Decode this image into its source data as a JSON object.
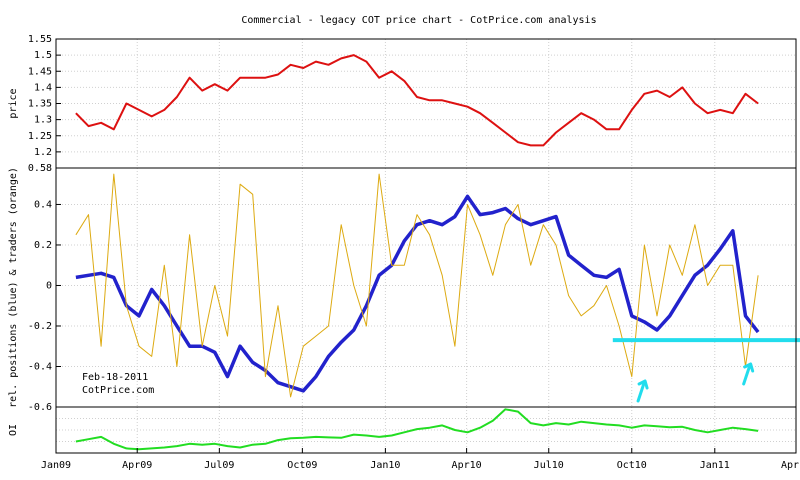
{
  "chart_data": {
    "type": "line",
    "title": "Commercial - legacy COT price chart - CotPrice.com analysis",
    "x_axis": {
      "tick_labels": [
        "Jan09",
        "Apr09",
        "Jul09",
        "Oct09",
        "Jan10",
        "Apr10",
        "Jul10",
        "Oct10",
        "Jan11",
        "Apr11"
      ],
      "range": [
        "2009-01-01",
        "2011-04-01"
      ]
    },
    "panels": [
      {
        "id": "price",
        "ylabel": "price",
        "ylim": [
          1.15,
          1.55
        ],
        "yticks": [
          "1.2",
          "1.25",
          "1.3",
          "1.35",
          "1.4",
          "1.45",
          "1.5",
          "1.55"
        ],
        "grid": true,
        "series": [
          {
            "color": "#dd1111",
            "x": [
              "2009-01-23",
              "2009-02-06",
              "2009-02-20",
              "2009-03-06",
              "2009-03-20",
              "2009-04-03",
              "2009-04-17",
              "2009-05-01",
              "2009-05-15",
              "2009-05-29",
              "2009-06-12",
              "2009-06-26",
              "2009-07-10",
              "2009-07-24",
              "2009-08-07",
              "2009-08-21",
              "2009-09-04",
              "2009-09-18",
              "2009-10-02",
              "2009-10-16",
              "2009-10-30",
              "2009-11-13",
              "2009-11-27",
              "2009-12-11",
              "2009-12-25",
              "2010-01-08",
              "2010-01-22",
              "2010-02-05",
              "2010-02-19",
              "2010-03-05",
              "2010-03-19",
              "2010-04-02",
              "2010-04-16",
              "2010-04-30",
              "2010-05-14",
              "2010-05-28",
              "2010-06-11",
              "2010-06-25",
              "2010-07-09",
              "2010-07-23",
              "2010-08-06",
              "2010-08-20",
              "2010-09-03",
              "2010-09-17",
              "2010-10-01",
              "2010-10-15",
              "2010-10-29",
              "2010-11-12",
              "2010-11-26",
              "2010-12-10",
              "2010-12-24",
              "2011-01-07",
              "2011-01-21",
              "2011-02-04",
              "2011-02-18"
            ],
            "y": [
              1.32,
              1.28,
              1.29,
              1.27,
              1.35,
              1.33,
              1.31,
              1.33,
              1.37,
              1.43,
              1.39,
              1.41,
              1.39,
              1.43,
              1.43,
              1.43,
              1.44,
              1.47,
              1.46,
              1.48,
              1.47,
              1.49,
              1.5,
              1.48,
              1.43,
              1.45,
              1.42,
              1.37,
              1.36,
              1.36,
              1.35,
              1.34,
              1.32,
              1.29,
              1.26,
              1.23,
              1.22,
              1.22,
              1.26,
              1.29,
              1.32,
              1.3,
              1.27,
              1.27,
              1.33,
              1.38,
              1.39,
              1.37,
              1.4,
              1.35,
              1.32,
              1.33,
              1.32,
              1.38,
              1.35
            ]
          }
        ]
      },
      {
        "id": "positions",
        "ylabel": "rel. positions (blue) & traders (orange)",
        "ylim": [
          -0.6,
          0.58
        ],
        "yticks": [
          "-0.6",
          "-0.4",
          "-0.2",
          "0",
          "0.2",
          "0.4",
          "0.58"
        ],
        "grid": true,
        "annotations": [
          "Feb-18-2011",
          "CotPrice.com"
        ],
        "highlight_level": -0.27,
        "highlight_color": "#22dded",
        "series": [
          {
            "color": "#2222cc",
            "x": [
              "2009-01-23",
              "2009-02-06",
              "2009-02-20",
              "2009-03-06",
              "2009-03-20",
              "2009-04-03",
              "2009-04-17",
              "2009-05-01",
              "2009-05-15",
              "2009-05-29",
              "2009-06-12",
              "2009-06-26",
              "2009-07-10",
              "2009-07-24",
              "2009-08-07",
              "2009-08-21",
              "2009-09-04",
              "2009-09-18",
              "2009-10-02",
              "2009-10-16",
              "2009-10-30",
              "2009-11-13",
              "2009-11-27",
              "2009-12-11",
              "2009-12-25",
              "2010-01-08",
              "2010-01-22",
              "2010-02-05",
              "2010-02-19",
              "2010-03-05",
              "2010-03-19",
              "2010-04-02",
              "2010-04-16",
              "2010-04-30",
              "2010-05-14",
              "2010-05-28",
              "2010-06-11",
              "2010-06-25",
              "2010-07-09",
              "2010-07-23",
              "2010-08-06",
              "2010-08-20",
              "2010-09-03",
              "2010-09-17",
              "2010-10-01",
              "2010-10-15",
              "2010-10-29",
              "2010-11-12",
              "2010-11-26",
              "2010-12-10",
              "2010-12-24",
              "2011-01-07",
              "2011-01-21",
              "2011-02-04",
              "2011-02-18"
            ],
            "y": [
              0.04,
              0.05,
              0.06,
              0.04,
              -0.1,
              -0.15,
              -0.02,
              -0.1,
              -0.2,
              -0.3,
              -0.3,
              -0.33,
              -0.45,
              -0.3,
              -0.38,
              -0.42,
              -0.48,
              -0.5,
              -0.52,
              -0.45,
              -0.35,
              -0.28,
              -0.22,
              -0.1,
              0.05,
              0.1,
              0.22,
              0.3,
              0.32,
              0.3,
              0.34,
              0.44,
              0.35,
              0.36,
              0.38,
              0.33,
              0.3,
              0.32,
              0.34,
              0.15,
              0.1,
              0.05,
              0.04,
              0.08,
              -0.15,
              -0.18,
              -0.22,
              -0.15,
              -0.05,
              0.05,
              0.1,
              0.18,
              0.27,
              -0.15,
              -0.23
            ]
          },
          {
            "color": "#ddaa11",
            "x": [
              "2009-01-23",
              "2009-02-06",
              "2009-02-20",
              "2009-03-06",
              "2009-03-20",
              "2009-04-03",
              "2009-04-17",
              "2009-05-01",
              "2009-05-15",
              "2009-05-29",
              "2009-06-12",
              "2009-06-26",
              "2009-07-10",
              "2009-07-24",
              "2009-08-07",
              "2009-08-21",
              "2009-09-04",
              "2009-09-18",
              "2009-10-02",
              "2009-10-16",
              "2009-10-30",
              "2009-11-13",
              "2009-11-27",
              "2009-12-11",
              "2009-12-25",
              "2010-01-08",
              "2010-01-22",
              "2010-02-05",
              "2010-02-19",
              "2010-03-05",
              "2010-03-19",
              "2010-04-02",
              "2010-04-16",
              "2010-04-30",
              "2010-05-14",
              "2010-05-28",
              "2010-06-11",
              "2010-06-25",
              "2010-07-09",
              "2010-07-23",
              "2010-08-06",
              "2010-08-20",
              "2010-09-03",
              "2010-09-17",
              "2010-10-01",
              "2010-10-15",
              "2010-10-29",
              "2010-11-12",
              "2010-11-26",
              "2010-12-10",
              "2010-12-24",
              "2011-01-07",
              "2011-01-21",
              "2011-02-04",
              "2011-02-18"
            ],
            "y": [
              0.25,
              0.35,
              -0.3,
              0.55,
              -0.1,
              -0.3,
              -0.35,
              0.1,
              -0.4,
              0.25,
              -0.3,
              0.0,
              -0.25,
              0.5,
              0.45,
              -0.45,
              -0.1,
              -0.55,
              -0.3,
              -0.25,
              -0.2,
              0.3,
              0.0,
              -0.2,
              0.55,
              0.1,
              0.1,
              0.35,
              0.25,
              0.05,
              -0.3,
              0.4,
              0.25,
              0.05,
              0.3,
              0.4,
              0.1,
              0.3,
              0.2,
              -0.05,
              -0.15,
              -0.1,
              0.0,
              -0.2,
              -0.45,
              0.2,
              -0.15,
              0.2,
              0.05,
              0.3,
              0.0,
              0.1,
              0.1,
              -0.4,
              0.05
            ]
          }
        ]
      },
      {
        "id": "oi",
        "ylabel": "OI",
        "grid": true,
        "series": [
          {
            "color": "#22dd22",
            "x": [
              "2009-01-23",
              "2009-02-06",
              "2009-02-20",
              "2009-03-06",
              "2009-03-20",
              "2009-04-03",
              "2009-04-17",
              "2009-05-01",
              "2009-05-15",
              "2009-05-29",
              "2009-06-12",
              "2009-06-26",
              "2009-07-10",
              "2009-07-24",
              "2009-08-07",
              "2009-08-21",
              "2009-09-04",
              "2009-09-18",
              "2009-10-02",
              "2009-10-16",
              "2009-10-30",
              "2009-11-13",
              "2009-11-27",
              "2009-12-11",
              "2009-12-25",
              "2010-01-08",
              "2010-01-22",
              "2010-02-05",
              "2010-02-19",
              "2010-03-05",
              "2010-03-19",
              "2010-04-02",
              "2010-04-16",
              "2010-04-30",
              "2010-05-14",
              "2010-05-28",
              "2010-06-11",
              "2010-06-25",
              "2010-07-09",
              "2010-07-23",
              "2010-08-06",
              "2010-08-20",
              "2010-09-03",
              "2010-09-17",
              "2010-10-01",
              "2010-10-15",
              "2010-10-29",
              "2010-11-12",
              "2010-11-26",
              "2010-12-10",
              "2010-12-24",
              "2011-01-07",
              "2011-01-21",
              "2011-02-04",
              "2011-02-18"
            ],
            "y": [
              0.25,
              0.3,
              0.35,
              0.2,
              0.1,
              0.08,
              0.1,
              0.12,
              0.15,
              0.2,
              0.18,
              0.2,
              0.15,
              0.12,
              0.18,
              0.2,
              0.28,
              0.32,
              0.33,
              0.35,
              0.34,
              0.33,
              0.4,
              0.38,
              0.35,
              0.38,
              0.45,
              0.52,
              0.55,
              0.6,
              0.5,
              0.45,
              0.55,
              0.7,
              0.95,
              0.9,
              0.65,
              0.6,
              0.65,
              0.62,
              0.68,
              0.65,
              0.62,
              0.6,
              0.55,
              0.6,
              0.58,
              0.56,
              0.57,
              0.5,
              0.45,
              0.5,
              0.55,
              0.52,
              0.48
            ]
          }
        ]
      }
    ]
  }
}
